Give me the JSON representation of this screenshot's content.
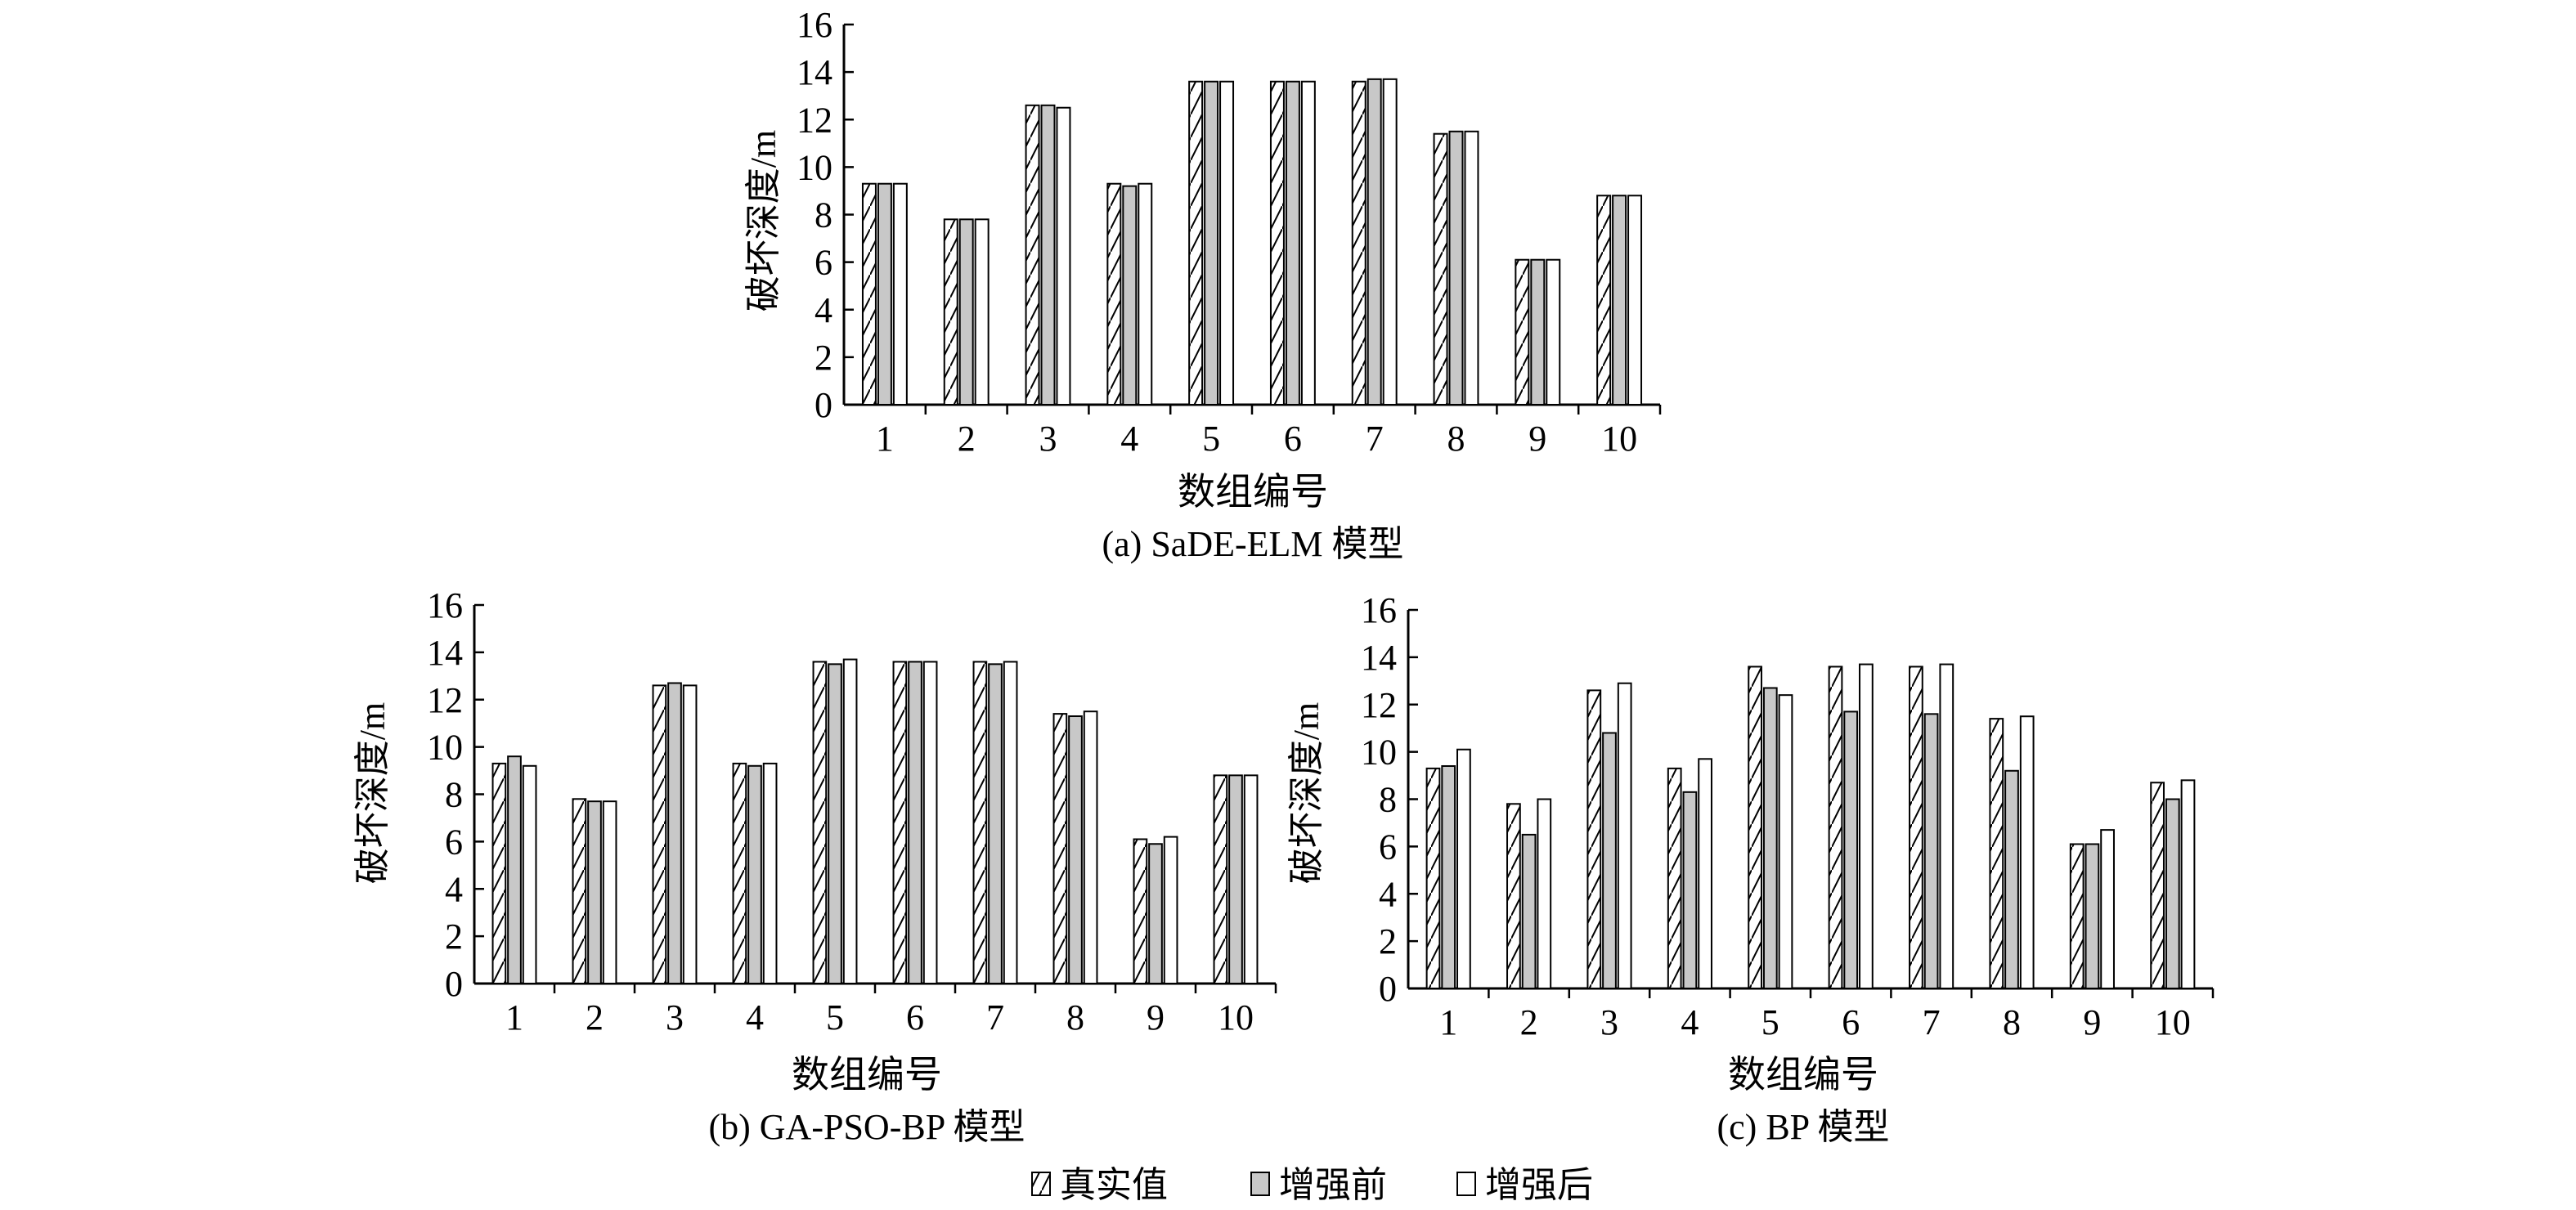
{
  "legend": {
    "items": [
      {
        "label": "真实值",
        "pattern": "hatch"
      },
      {
        "label": "增强前",
        "pattern": "gray"
      },
      {
        "label": "增强后",
        "pattern": "white"
      }
    ]
  },
  "colors": {
    "gray_fill": "#c8c8c8",
    "white_fill": "#ffffff",
    "stroke": "#000000"
  },
  "chart_data": [
    {
      "type": "bar",
      "caption": "(a) SaDE-ELM 模型",
      "xlabel": "数组编号",
      "ylabel": "破坏深度/m",
      "ylim": [
        0,
        16
      ],
      "yticks": [
        0,
        2,
        4,
        6,
        8,
        10,
        12,
        14,
        16
      ],
      "categories": [
        "1",
        "2",
        "3",
        "4",
        "5",
        "6",
        "7",
        "8",
        "9",
        "10"
      ],
      "series": [
        {
          "name": "真实值",
          "values": [
            9.3,
            7.8,
            12.6,
            9.3,
            13.6,
            13.6,
            13.6,
            11.4,
            6.1,
            8.8
          ]
        },
        {
          "name": "增强前",
          "values": [
            9.3,
            7.8,
            12.6,
            9.2,
            13.6,
            13.6,
            13.7,
            11.5,
            6.1,
            8.8
          ]
        },
        {
          "name": "增强后",
          "values": [
            9.3,
            7.8,
            12.5,
            9.3,
            13.6,
            13.6,
            13.7,
            11.5,
            6.1,
            8.8
          ]
        }
      ]
    },
    {
      "type": "bar",
      "caption": "(b) GA-PSO-BP 模型",
      "xlabel": "数组编号",
      "ylabel": "破坏深度/m",
      "ylim": [
        0,
        16
      ],
      "yticks": [
        0,
        2,
        4,
        6,
        8,
        10,
        12,
        14,
        16
      ],
      "categories": [
        "1",
        "2",
        "3",
        "4",
        "5",
        "6",
        "7",
        "8",
        "9",
        "10"
      ],
      "series": [
        {
          "name": "真实值",
          "values": [
            9.3,
            7.8,
            12.6,
            9.3,
            13.6,
            13.6,
            13.6,
            11.4,
            6.1,
            8.8
          ]
        },
        {
          "name": "增强前",
          "values": [
            9.6,
            7.7,
            12.7,
            9.2,
            13.5,
            13.6,
            13.5,
            11.3,
            5.9,
            8.8
          ]
        },
        {
          "name": "增强后",
          "values": [
            9.2,
            7.7,
            12.6,
            9.3,
            13.7,
            13.6,
            13.6,
            11.5,
            6.2,
            8.8
          ]
        }
      ]
    },
    {
      "type": "bar",
      "caption": "(c) BP 模型",
      "xlabel": "数组编号",
      "ylabel": "破坏深度/m",
      "ylim": [
        0,
        16
      ],
      "yticks": [
        0,
        2,
        4,
        6,
        8,
        10,
        12,
        14,
        16
      ],
      "categories": [
        "1",
        "2",
        "3",
        "4",
        "5",
        "6",
        "7",
        "8",
        "9",
        "10"
      ],
      "series": [
        {
          "name": "真实值",
          "values": [
            9.3,
            7.8,
            12.6,
            9.3,
            13.6,
            13.6,
            13.6,
            11.4,
            6.1,
            8.7
          ]
        },
        {
          "name": "增强前",
          "values": [
            9.4,
            6.5,
            10.8,
            8.3,
            12.7,
            11.7,
            11.6,
            9.2,
            6.1,
            8.0
          ]
        },
        {
          "name": "增强后",
          "values": [
            10.1,
            8.0,
            12.9,
            9.7,
            12.4,
            13.7,
            13.7,
            11.5,
            6.7,
            8.8
          ]
        }
      ]
    }
  ]
}
